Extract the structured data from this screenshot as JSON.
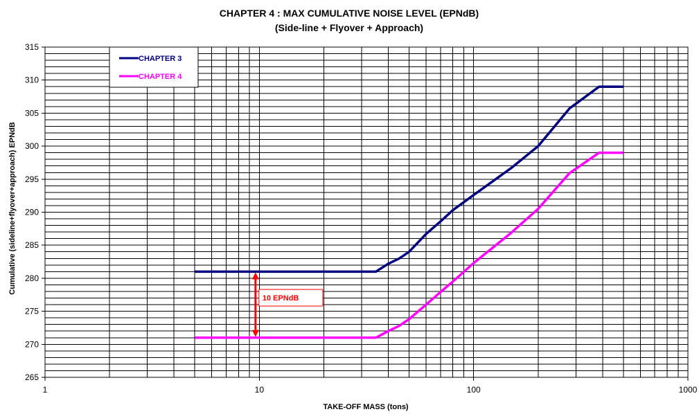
{
  "chart_data": {
    "type": "line",
    "title": "CHAPTER 4 : MAX CUMULATIVE NOISE LEVEL (EPNdB)",
    "subtitle": "(Side-line + Flyover + Approach)",
    "xlabel": "TAKE-OFF MASS (tons)",
    "ylabel": "Cumulative (sideline+flyover+approach) EPNdB",
    "xscale": "log",
    "xlim": [
      1,
      1000
    ],
    "ylim": [
      265,
      315
    ],
    "x_ticks": [
      1,
      10,
      100,
      1000
    ],
    "x_tick_labels": [
      "1",
      "10",
      "100",
      "1000"
    ],
    "y_ticks": [
      265,
      270,
      275,
      280,
      285,
      290,
      295,
      300,
      305,
      310,
      315
    ],
    "y_tick_labels": [
      "265",
      "270",
      "275",
      "280",
      "285",
      "290",
      "295",
      "300",
      "305",
      "310",
      "315"
    ],
    "grid": true,
    "legend_position": "top-left",
    "series": [
      {
        "name": "CHAPTER 3",
        "color": "#000080",
        "points": [
          [
            5,
            281
          ],
          [
            35,
            281
          ],
          [
            40,
            282.2
          ],
          [
            45,
            283
          ],
          [
            50,
            284
          ],
          [
            60,
            286.7
          ],
          [
            70,
            288.6
          ],
          [
            80,
            290.3
          ],
          [
            100,
            292.6
          ],
          [
            150,
            296.7
          ],
          [
            200,
            300
          ],
          [
            280,
            305.7
          ],
          [
            385,
            309
          ],
          [
            500,
            309
          ]
        ]
      },
      {
        "name": "CHAPTER 4",
        "color": "#ff00ff",
        "points": [
          [
            5,
            271
          ],
          [
            35,
            271
          ],
          [
            40,
            272
          ],
          [
            45,
            272.8
          ],
          [
            50,
            273.8
          ],
          [
            60,
            276
          ],
          [
            70,
            277.9
          ],
          [
            80,
            279.5
          ],
          [
            100,
            282.3
          ],
          [
            150,
            286.9
          ],
          [
            200,
            290.5
          ],
          [
            280,
            295.9
          ],
          [
            385,
            299
          ],
          [
            500,
            299
          ]
        ]
      }
    ],
    "annotation": {
      "label": "10 EPNdB",
      "color": "#ff0000",
      "x": 9.6,
      "y_from": 271,
      "y_to": 281
    }
  }
}
